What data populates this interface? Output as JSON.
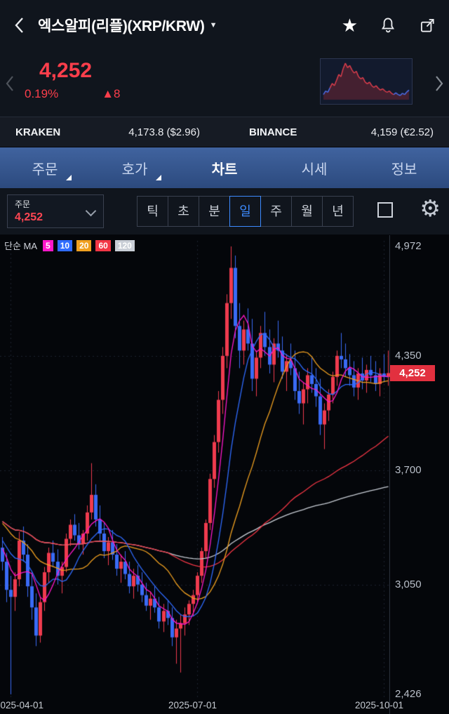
{
  "header": {
    "title": "엑스알피(리플)(XRP/KRW)",
    "caret": "▼",
    "star": "★"
  },
  "price": {
    "value": "4,252",
    "change_pct": "0.19%",
    "change_amount": "▲8"
  },
  "exchanges": [
    {
      "name": "KRAKEN",
      "value": "4,173.8 ($2.96)"
    },
    {
      "name": "BINANCE",
      "value": "4,159 (€2.52)"
    }
  ],
  "tabs": [
    {
      "id": "order",
      "label": "주문",
      "fold": true,
      "active": false
    },
    {
      "id": "orderbook",
      "label": "호가",
      "fold": true,
      "active": false
    },
    {
      "id": "chart",
      "label": "차트",
      "fold": false,
      "active": true
    },
    {
      "id": "quotes",
      "label": "시세",
      "fold": false,
      "active": false
    },
    {
      "id": "info",
      "label": "정보",
      "fold": false,
      "active": false
    }
  ],
  "toolbar": {
    "dropdown_label": "주문",
    "dropdown_value": "4,252",
    "periods": [
      {
        "id": "tick",
        "label": "틱",
        "selected": false
      },
      {
        "id": "second",
        "label": "초",
        "selected": false
      },
      {
        "id": "minute",
        "label": "분",
        "selected": false
      },
      {
        "id": "day",
        "label": "일",
        "selected": true
      },
      {
        "id": "week",
        "label": "주",
        "selected": false
      },
      {
        "id": "month",
        "label": "월",
        "selected": false
      },
      {
        "id": "year",
        "label": "년",
        "selected": false
      }
    ]
  },
  "legend": {
    "label": "단순 MA",
    "items": [
      {
        "period": "5",
        "color": "#ff17c9"
      },
      {
        "period": "10",
        "color": "#2f6bff"
      },
      {
        "period": "20",
        "color": "#f0a020"
      },
      {
        "period": "60",
        "color": "#f23645"
      },
      {
        "period": "120",
        "color": "#c9ced6"
      }
    ]
  },
  "axis": {
    "y_labels": [
      {
        "value": 4972,
        "label": "4,972"
      },
      {
        "value": 4350,
        "label": "4,350"
      },
      {
        "value": 3700,
        "label": "3,700"
      },
      {
        "value": 3050,
        "label": "3,050"
      },
      {
        "value": 2426,
        "label": "2,426"
      }
    ],
    "last_price": {
      "value": 4252,
      "label": "4,252"
    },
    "x_labels": [
      {
        "index": 2,
        "label": "2025-04-01"
      },
      {
        "index": 46,
        "label": "2025-07-01"
      },
      {
        "index": 90,
        "label": "2025-10-01"
      }
    ]
  },
  "chart_data": {
    "type": "candlestick",
    "title": "XRP/KRW daily candles with simple moving averages 5/10/20/60/120",
    "ylim": [
      2426,
      4972
    ],
    "x_step": 6.04,
    "up_color": "#ef3b4e",
    "down_color": "#3a6bf5",
    "gridline_values": [
      4350,
      3700,
      3050
    ],
    "prehistory": [
      3600,
      3580,
      3620,
      3550,
      3500,
      3530,
      3470,
      3440,
      3480,
      3420,
      3380,
      3400,
      3350,
      3320,
      3360,
      3300,
      3280,
      3310,
      3260,
      3240
    ],
    "candles": [
      [
        3260,
        3320,
        3130,
        3180
      ],
      [
        3180,
        3230,
        2950,
        3020
      ],
      [
        3020,
        3100,
        2426,
        2980
      ],
      [
        2980,
        3120,
        2900,
        3080
      ],
      [
        3080,
        3350,
        3040,
        3300
      ],
      [
        3300,
        3380,
        3180,
        3220
      ],
      [
        3220,
        3280,
        2980,
        3040
      ],
      [
        3040,
        3120,
        2850,
        2920
      ],
      [
        2920,
        3000,
        2700,
        2760
      ],
      [
        2760,
        2980,
        2720,
        2950
      ],
      [
        2950,
        3150,
        2900,
        3120
      ],
      [
        3120,
        3260,
        3060,
        3230
      ],
      [
        3230,
        3300,
        3150,
        3180
      ],
      [
        3180,
        3250,
        3050,
        3100
      ],
      [
        3100,
        3180,
        3000,
        3150
      ],
      [
        3150,
        3340,
        3120,
        3310
      ],
      [
        3310,
        3420,
        3270,
        3390
      ],
      [
        3390,
        3450,
        3300,
        3330
      ],
      [
        3330,
        3400,
        3250,
        3280
      ],
      [
        3280,
        3360,
        3220,
        3340
      ],
      [
        3340,
        3500,
        3300,
        3460
      ],
      [
        3460,
        3740,
        3420,
        3560
      ],
      [
        3560,
        3620,
        3380,
        3420
      ],
      [
        3420,
        3500,
        3300,
        3340
      ],
      [
        3340,
        3400,
        3200,
        3240
      ],
      [
        3240,
        3320,
        3160,
        3290
      ],
      [
        3290,
        3360,
        3190,
        3220
      ],
      [
        3220,
        3280,
        3100,
        3140
      ],
      [
        3140,
        3220,
        3060,
        3180
      ],
      [
        3180,
        3240,
        3080,
        3110
      ],
      [
        3110,
        3180,
        3000,
        3040
      ],
      [
        3040,
        3140,
        2970,
        3100
      ],
      [
        3100,
        3160,
        3010,
        3050
      ],
      [
        3050,
        3120,
        2950,
        2990
      ],
      [
        2990,
        3060,
        2900,
        2930
      ],
      [
        2930,
        3010,
        2850,
        2970
      ],
      [
        2970,
        3040,
        2890,
        2920
      ],
      [
        2920,
        2980,
        2800,
        2840
      ],
      [
        2840,
        2940,
        2780,
        2900
      ],
      [
        2900,
        2960,
        2820,
        2860
      ],
      [
        2860,
        2920,
        2700,
        2750
      ],
      [
        2750,
        2850,
        2600,
        2800
      ],
      [
        2800,
        2880,
        2550,
        2830
      ],
      [
        2830,
        2920,
        2760,
        2880
      ],
      [
        2880,
        2960,
        2820,
        2940
      ],
      [
        2940,
        3020,
        2870,
        2990
      ],
      [
        2990,
        3120,
        2950,
        3100
      ],
      [
        3100,
        3260,
        3060,
        3240
      ],
      [
        3240,
        3420,
        3200,
        3400
      ],
      [
        3400,
        3680,
        3360,
        3650
      ],
      [
        3650,
        3900,
        3600,
        3860
      ],
      [
        3860,
        4150,
        3800,
        4100
      ],
      [
        4100,
        4400,
        4020,
        4350
      ],
      [
        4350,
        4700,
        4280,
        4650
      ],
      [
        4650,
        4972,
        4560,
        4850
      ],
      [
        4850,
        4920,
        4450,
        4520
      ],
      [
        4520,
        4650,
        4280,
        4380
      ],
      [
        4380,
        4550,
        4300,
        4500
      ],
      [
        4500,
        4620,
        4380,
        4420
      ],
      [
        4420,
        4560,
        4150,
        4220
      ],
      [
        4220,
        4380,
        4120,
        4340
      ],
      [
        4340,
        4520,
        4280,
        4480
      ],
      [
        4480,
        4600,
        4350,
        4400
      ],
      [
        4400,
        4500,
        4250,
        4300
      ],
      [
        4300,
        4450,
        4200,
        4420
      ],
      [
        4420,
        4550,
        4340,
        4380
      ],
      [
        4380,
        4460,
        4220,
        4260
      ],
      [
        4260,
        4360,
        4150,
        4320
      ],
      [
        4320,
        4420,
        4240,
        4280
      ],
      [
        4280,
        4380,
        4100,
        4150
      ],
      [
        4150,
        4260,
        4020,
        4080
      ],
      [
        4080,
        4200,
        3960,
        4160
      ],
      [
        4160,
        4280,
        4080,
        4240
      ],
      [
        4240,
        4340,
        4140,
        4190
      ],
      [
        4190,
        4280,
        4060,
        4120
      ],
      [
        4120,
        4220,
        3900,
        3960
      ],
      [
        3960,
        4080,
        3820,
        4040
      ],
      [
        4040,
        4160,
        3980,
        4130
      ],
      [
        4130,
        4260,
        4080,
        4230
      ],
      [
        4230,
        4380,
        4180,
        4350
      ],
      [
        4350,
        4480,
        4280,
        4330
      ],
      [
        4330,
        4420,
        4230,
        4280
      ],
      [
        4280,
        4360,
        4180,
        4240
      ],
      [
        4240,
        4320,
        4120,
        4170
      ],
      [
        4170,
        4280,
        4100,
        4250
      ],
      [
        4250,
        4340,
        4160,
        4210
      ],
      [
        4210,
        4300,
        4140,
        4270
      ],
      [
        4270,
        4350,
        4200,
        4240
      ],
      [
        4240,
        4320,
        4150,
        4190
      ],
      [
        4190,
        4280,
        4120,
        4250
      ],
      [
        4250,
        4360,
        4200,
        4230
      ],
      [
        4230,
        4380,
        4180,
        4252
      ]
    ],
    "ma": [
      {
        "period": 120,
        "color": "#c9ced6"
      },
      {
        "period": 60,
        "color": "#f23645"
      },
      {
        "period": 20,
        "color": "#f0a020"
      },
      {
        "period": 10,
        "color": "#2f6bff"
      },
      {
        "period": 5,
        "color": "#ff17c9"
      }
    ],
    "sparkline": {
      "values": [
        30,
        38,
        35,
        45,
        55,
        50,
        62,
        75,
        70,
        88,
        100,
        90,
        95,
        85,
        78,
        82,
        70,
        65,
        68,
        58,
        54,
        58,
        50,
        46,
        50,
        44,
        40,
        43,
        38,
        35,
        38,
        33,
        30,
        34,
        30,
        28,
        33,
        30,
        36,
        40
      ],
      "blue_head": 3,
      "blue_tail": 7,
      "line_color": "#e8404e",
      "alt_color": "#4f74f5",
      "fill_color": "rgba(220,50,60,0.25)"
    }
  }
}
